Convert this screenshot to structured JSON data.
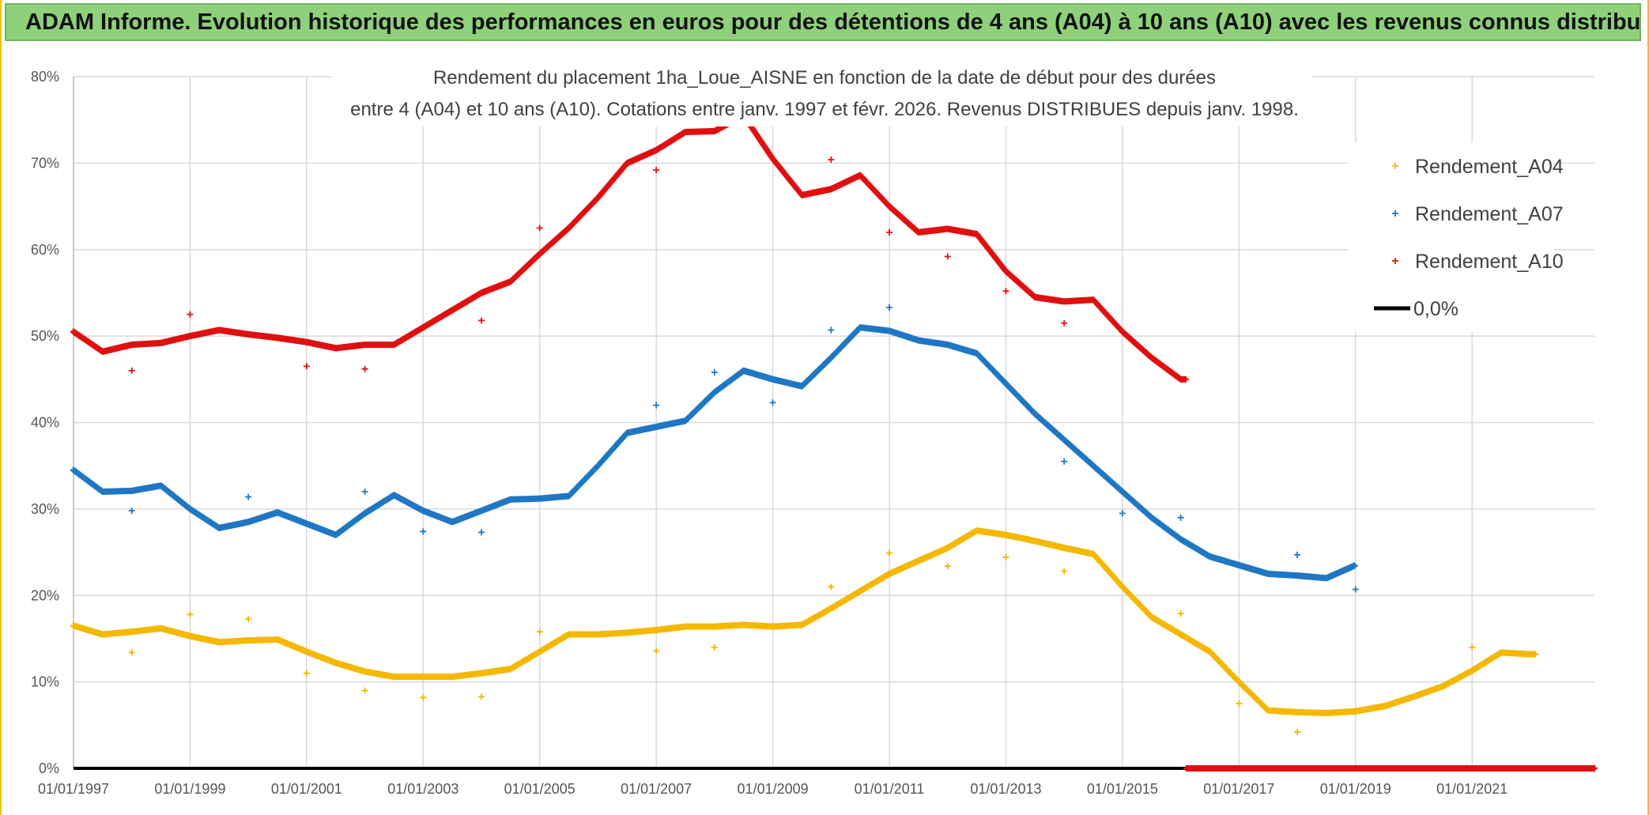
{
  "banner": {
    "title": "ADAM Informe. Evolution historique des performances en euros pour des détentions de 4 ans (A04) à 10 ans (A10) avec les revenus connus distribués"
  },
  "chart_data": {
    "type": "scatter",
    "title": "",
    "subtitle_lines": [
      "Rendement du placement 1ha_Loue_AISNE en fonction de la date de début pour des durées",
      "entre 4 (A04) et 10 ans (A10). Cotations entre janv. 1997 et févr. 2026. Revenus DISTRIBUES depuis janv. 1998."
    ],
    "xlabel": "",
    "ylabel": "",
    "x_unit": "year",
    "xlim": [
      1997,
      2023.1
    ],
    "ylim": [
      0,
      80
    ],
    "x_ticks": [
      {
        "label": "01/01/1997",
        "value": 1997
      },
      {
        "label": "01/01/1999",
        "value": 1999
      },
      {
        "label": "01/01/2001",
        "value": 2001
      },
      {
        "label": "01/01/2003",
        "value": 2003
      },
      {
        "label": "01/01/2005",
        "value": 2005
      },
      {
        "label": "01/01/2007",
        "value": 2007
      },
      {
        "label": "01/01/2009",
        "value": 2009
      },
      {
        "label": "01/01/2011",
        "value": 2011
      },
      {
        "label": "01/01/2013",
        "value": 2013
      },
      {
        "label": "01/01/2015",
        "value": 2015
      },
      {
        "label": "01/01/2017",
        "value": 2017
      },
      {
        "label": "01/01/2019",
        "value": 2019
      },
      {
        "label": "01/01/2021",
        "value": 2021
      }
    ],
    "y_ticks": [
      {
        "label": "0%",
        "value": 0
      },
      {
        "label": "10%",
        "value": 10
      },
      {
        "label": "20%",
        "value": 20
      },
      {
        "label": "30%",
        "value": 30
      },
      {
        "label": "40%",
        "value": 40
      },
      {
        "label": "50%",
        "value": 50
      },
      {
        "label": "60%",
        "value": 60
      },
      {
        "label": "70%",
        "value": 70
      },
      {
        "label": "80%",
        "value": 80
      }
    ],
    "grid": true,
    "legend_position": "top-right",
    "series": [
      {
        "name": "Rendement_A04",
        "color": "#f5b800",
        "points": [
          [
            1997.0,
            16.5
          ],
          [
            1997.5,
            15.5
          ],
          [
            1998.0,
            15.8
          ],
          [
            1998.5,
            16.2
          ],
          [
            1999.0,
            15.3
          ],
          [
            1999.5,
            14.6
          ],
          [
            2000.0,
            14.8
          ],
          [
            2000.5,
            14.9
          ],
          [
            2001.0,
            13.5
          ],
          [
            2001.5,
            12.2
          ],
          [
            2002.0,
            11.2
          ],
          [
            2002.5,
            10.6
          ],
          [
            2003.0,
            10.6
          ],
          [
            2003.5,
            10.6
          ],
          [
            2004.0,
            11.0
          ],
          [
            2004.5,
            11.5
          ],
          [
            2005.0,
            13.5
          ],
          [
            2005.5,
            15.5
          ],
          [
            2006.0,
            15.5
          ],
          [
            2006.5,
            15.7
          ],
          [
            2007.0,
            16.0
          ],
          [
            2007.5,
            16.4
          ],
          [
            2008.0,
            16.4
          ],
          [
            2008.5,
            16.6
          ],
          [
            2009.0,
            16.4
          ],
          [
            2009.5,
            16.6
          ],
          [
            2010.0,
            18.5
          ],
          [
            2010.5,
            20.5
          ],
          [
            2011.0,
            22.5
          ],
          [
            2011.5,
            24.0
          ],
          [
            2012.0,
            25.5
          ],
          [
            2012.5,
            27.5
          ],
          [
            2013.0,
            27.0
          ],
          [
            2013.5,
            26.3
          ],
          [
            2014.0,
            25.5
          ],
          [
            2014.5,
            24.8
          ],
          [
            2015.0,
            21.0
          ],
          [
            2015.5,
            17.5
          ],
          [
            2016.0,
            15.5
          ],
          [
            2016.5,
            13.5
          ],
          [
            2017.0,
            10.0
          ],
          [
            2017.5,
            6.7
          ],
          [
            2018.0,
            6.5
          ],
          [
            2018.5,
            6.4
          ],
          [
            2019.0,
            6.6
          ],
          [
            2019.5,
            7.2
          ],
          [
            2020.0,
            8.3
          ],
          [
            2020.5,
            9.5
          ],
          [
            2021.0,
            11.3
          ],
          [
            2021.5,
            13.4
          ],
          [
            2022.0,
            13.2
          ],
          [
            2022.1,
            13.2
          ]
        ],
        "outliers": [
          [
            1998.0,
            13.4
          ],
          [
            1999.0,
            17.8
          ],
          [
            2000.0,
            17.3
          ],
          [
            2001.0,
            11.0
          ],
          [
            2002.0,
            9.0
          ],
          [
            2003.0,
            8.2
          ],
          [
            2004.0,
            8.3
          ],
          [
            2005.0,
            15.8
          ],
          [
            2007.0,
            13.6
          ],
          [
            2008.0,
            14.0
          ],
          [
            2010.0,
            21.0
          ],
          [
            2011.0,
            24.9
          ],
          [
            2012.0,
            23.4
          ],
          [
            2013.0,
            24.4
          ],
          [
            2014.0,
            22.8
          ],
          [
            2016.0,
            17.9
          ],
          [
            2017.0,
            7.5
          ],
          [
            2018.0,
            4.2
          ],
          [
            2021.0,
            14.0
          ]
        ]
      },
      {
        "name": "Rendement_A07",
        "color": "#1f77c4",
        "points": [
          [
            1997.0,
            34.5
          ],
          [
            1997.5,
            32.0
          ],
          [
            1998.0,
            32.1
          ],
          [
            1998.5,
            32.7
          ],
          [
            1999.0,
            30.0
          ],
          [
            1999.5,
            27.8
          ],
          [
            2000.0,
            28.5
          ],
          [
            2000.5,
            29.6
          ],
          [
            2001.0,
            28.3
          ],
          [
            2001.5,
            27.0
          ],
          [
            2002.0,
            29.5
          ],
          [
            2002.5,
            31.6
          ],
          [
            2003.0,
            29.8
          ],
          [
            2003.5,
            28.5
          ],
          [
            2004.0,
            29.8
          ],
          [
            2004.5,
            31.1
          ],
          [
            2005.0,
            31.2
          ],
          [
            2005.5,
            31.5
          ],
          [
            2006.0,
            35.0
          ],
          [
            2006.5,
            38.8
          ],
          [
            2007.0,
            39.5
          ],
          [
            2007.5,
            40.2
          ],
          [
            2008.0,
            43.5
          ],
          [
            2008.5,
            46.0
          ],
          [
            2009.0,
            45.0
          ],
          [
            2009.5,
            44.2
          ],
          [
            2010.0,
            47.5
          ],
          [
            2010.5,
            51.0
          ],
          [
            2011.0,
            50.6
          ],
          [
            2011.5,
            49.5
          ],
          [
            2012.0,
            49.0
          ],
          [
            2012.5,
            48.0
          ],
          [
            2013.0,
            44.5
          ],
          [
            2013.5,
            41.0
          ],
          [
            2014.0,
            38.0
          ],
          [
            2014.5,
            35.0
          ],
          [
            2015.0,
            32.0
          ],
          [
            2015.5,
            29.0
          ],
          [
            2016.0,
            26.5
          ],
          [
            2016.5,
            24.5
          ],
          [
            2017.0,
            23.5
          ],
          [
            2017.5,
            22.5
          ],
          [
            2018.0,
            22.3
          ],
          [
            2018.5,
            22.0
          ],
          [
            2019.0,
            23.5
          ]
        ],
        "outliers": [
          [
            1998.0,
            29.8
          ],
          [
            2000.0,
            31.4
          ],
          [
            2002.0,
            32.0
          ],
          [
            2003.0,
            27.4
          ],
          [
            2004.0,
            27.3
          ],
          [
            2007.0,
            42.0
          ],
          [
            2008.0,
            45.8
          ],
          [
            2009.0,
            42.3
          ],
          [
            2010.0,
            50.7
          ],
          [
            2011.0,
            53.3
          ],
          [
            2014.0,
            35.5
          ],
          [
            2015.0,
            29.5
          ],
          [
            2016.0,
            29.0
          ],
          [
            2018.0,
            24.7
          ],
          [
            2019.0,
            20.7
          ]
        ]
      },
      {
        "name": "Rendement_A10",
        "color": "#e01010",
        "points": [
          [
            1997.0,
            50.5
          ],
          [
            1997.5,
            48.2
          ],
          [
            1998.0,
            49.0
          ],
          [
            1998.5,
            49.2
          ],
          [
            1999.0,
            50.0
          ],
          [
            1999.5,
            50.7
          ],
          [
            2000.0,
            50.2
          ],
          [
            2000.5,
            49.8
          ],
          [
            2001.0,
            49.3
          ],
          [
            2001.5,
            48.6
          ],
          [
            2002.0,
            49.0
          ],
          [
            2002.5,
            49.0
          ],
          [
            2003.0,
            51.0
          ],
          [
            2003.5,
            53.0
          ],
          [
            2004.0,
            55.0
          ],
          [
            2004.5,
            56.3
          ],
          [
            2005.0,
            59.5
          ],
          [
            2005.5,
            62.5
          ],
          [
            2006.0,
            66.0
          ],
          [
            2006.5,
            70.0
          ],
          [
            2007.0,
            71.5
          ],
          [
            2007.5,
            73.6
          ],
          [
            2008.0,
            73.7
          ],
          [
            2008.5,
            75.5
          ],
          [
            2009.0,
            70.5
          ],
          [
            2009.5,
            66.3
          ],
          [
            2010.0,
            67.0
          ],
          [
            2010.5,
            68.6
          ],
          [
            2011.0,
            65.0
          ],
          [
            2011.5,
            62.0
          ],
          [
            2012.0,
            62.4
          ],
          [
            2012.5,
            61.8
          ],
          [
            2013.0,
            57.5
          ],
          [
            2013.5,
            54.5
          ],
          [
            2014.0,
            54.0
          ],
          [
            2014.5,
            54.2
          ],
          [
            2015.0,
            50.5
          ],
          [
            2015.5,
            47.5
          ],
          [
            2016.0,
            45.0
          ],
          [
            2016.1,
            45.0
          ]
        ],
        "outliers": [
          [
            1998.0,
            46.0
          ],
          [
            1999.0,
            52.5
          ],
          [
            2001.0,
            46.5
          ],
          [
            2002.0,
            46.2
          ],
          [
            2004.0,
            51.8
          ],
          [
            2005.0,
            62.5
          ],
          [
            2007.0,
            69.2
          ],
          [
            2010.0,
            70.4
          ],
          [
            2011.0,
            62.0
          ],
          [
            2012.0,
            59.2
          ],
          [
            2013.0,
            55.2
          ],
          [
            2014.0,
            51.5
          ]
        ],
        "zero_segment": [
          2016.1,
          2023.1
        ]
      }
    ],
    "reference_line": {
      "name": "0,0%",
      "value": 0,
      "color": "#000000"
    }
  }
}
